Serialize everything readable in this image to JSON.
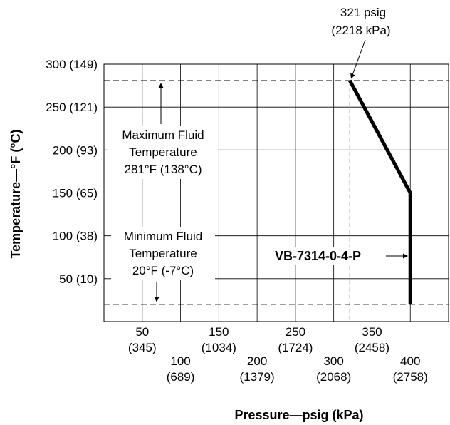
{
  "chart_data": {
    "type": "line",
    "xlabel": "Pressure—psig (kPa)",
    "ylabel": "Temperature—°F (°C)",
    "xlim": [
      0,
      450
    ],
    "ylim": [
      0,
      300
    ],
    "grid": true,
    "x_ticks": [
      {
        "value": 50,
        "label": "50",
        "sublabel": "(345)",
        "row": 0
      },
      {
        "value": 100,
        "label": "100",
        "sublabel": "(689)",
        "row": 1
      },
      {
        "value": 150,
        "label": "150",
        "sublabel": "(1034)",
        "row": 0
      },
      {
        "value": 200,
        "label": "200",
        "sublabel": "(1379)",
        "row": 1
      },
      {
        "value": 250,
        "label": "250",
        "sublabel": "(1724)",
        "row": 0
      },
      {
        "value": 300,
        "label": "300",
        "sublabel": "(2068)",
        "row": 1
      },
      {
        "value": 350,
        "label": "350",
        "sublabel": "(2458)",
        "row": 0
      },
      {
        "value": 400,
        "label": "400",
        "sublabel": "(2758)",
        "row": 1
      }
    ],
    "y_ticks": [
      {
        "value": 50,
        "label": "50 (10)"
      },
      {
        "value": 100,
        "label": "100 (38)"
      },
      {
        "value": 150,
        "label": "150 (65)"
      },
      {
        "value": 200,
        "label": "200 (93)"
      },
      {
        "value": 250,
        "label": "250 (121)"
      },
      {
        "value": 300,
        "label": "300 (149)"
      }
    ],
    "series": [
      {
        "name": "VB-7314-0-4-P",
        "points": [
          [
            321,
            281
          ],
          [
            400,
            150
          ],
          [
            400,
            20
          ]
        ]
      }
    ],
    "reference_lines": {
      "max_temp": 281,
      "min_temp": 20,
      "pressure": 321
    },
    "annotations": {
      "pressure_callout": [
        "321 psig",
        "(2218 kPa)"
      ],
      "max_fluid": [
        "Maximum Fluid",
        "Temperature",
        "281°F (138°C)"
      ],
      "min_fluid": [
        "Minimum Fluid",
        "Temperature",
        "20°F (-7°C)"
      ],
      "series_label": "VB-7314-0-4-P"
    }
  }
}
